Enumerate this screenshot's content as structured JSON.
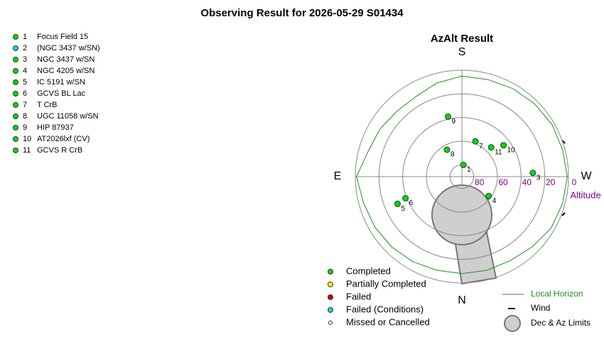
{
  "title": "Observing Result for 2026-05-29 S01434",
  "chart_data": {
    "type": "polar",
    "title": "AzAlt Result",
    "r_label": "Altitude",
    "rlim": [
      90,
      0
    ],
    "rticks": [
      80,
      60,
      40,
      20,
      0
    ],
    "azticks": [
      {
        "value": 0,
        "label": "N"
      },
      {
        "value": 90,
        "label": "E"
      },
      {
        "value": 180,
        "label": "S"
      },
      {
        "value": 270,
        "label": "W"
      }
    ],
    "ids": [
      "1",
      "2",
      "3",
      "4",
      "5",
      "6",
      "7",
      "8",
      "9",
      "10",
      "11"
    ],
    "names": [
      "Focus Field 15",
      "(NGC 3437 w/SN)",
      "NGC 3437 w/SN",
      "NGC 4205 w/SN",
      "IC 5191 w/SN",
      "GCVS BL Lac",
      "T CrB",
      "UGC 11058 w/SN",
      "HIP 87937",
      "AT2026lxf (CV)",
      "GCVS R CrB"
    ],
    "status": [
      0,
      3,
      0,
      0,
      0,
      0,
      0,
      0,
      0,
      0,
      0
    ],
    "az": [
      187,
      null,
      267,
      306,
      67,
      69,
      201,
      151,
      167,
      233,
      225
    ],
    "alt": [
      80,
      null,
      30,
      62,
      31,
      39,
      58,
      64,
      38,
      46,
      55
    ],
    "statuses": [
      {
        "name": "Completed",
        "color": "#00dd00"
      },
      {
        "name": "Partially Completed",
        "color": "#ffff00"
      },
      {
        "name": "Failed",
        "color": "#dd0000"
      },
      {
        "name": "Failed (Conditions)",
        "color": "#00dddd"
      },
      {
        "name": "Missed or Cancelled",
        "color": "#ffffff"
      }
    ],
    "horizon": {
      "name": "Local Horizon",
      "color": "#228b22",
      "az": [
        0,
        15,
        30,
        45,
        60,
        75,
        90,
        105,
        120,
        135,
        150,
        165,
        180,
        195,
        210,
        225,
        240,
        255,
        270,
        285,
        300,
        315,
        330,
        345,
        360
      ],
      "alt": [
        8,
        8,
        7,
        6,
        5,
        4,
        1,
        8,
        10,
        12,
        12,
        8,
        5,
        5,
        4,
        3,
        2,
        2,
        1,
        2,
        3,
        6,
        8,
        8,
        8
      ]
    },
    "wind": {
      "name": "Wind"
    },
    "limits": {
      "name": "Dec & Az Limits"
    }
  }
}
